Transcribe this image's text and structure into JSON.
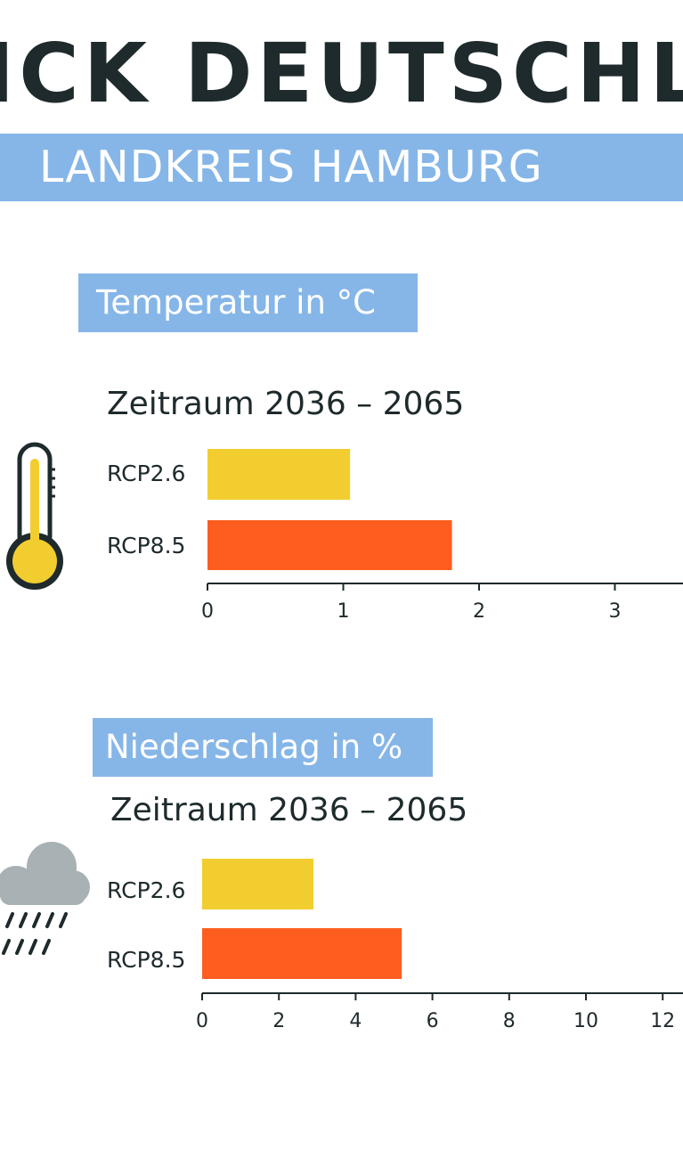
{
  "header": {
    "title": "ICK DEUTSCHLAN",
    "subtitle": "LANDKREIS HAMBURG"
  },
  "colors": {
    "accent_blue": "#86b6e8",
    "rcp26": "#f2cd2f",
    "rcp85": "#fd5d1f",
    "dark": "#1e2a2c",
    "cloud": "#a8b1b3"
  },
  "icons": [
    "thermometer-icon",
    "rain-cloud-icon"
  ],
  "chart_data": [
    {
      "type": "bar",
      "orientation": "horizontal",
      "title": "Temperatur in °C",
      "subtitle": "Zeitraum 2036 – 2065",
      "categories": [
        "RCP2.6",
        "RCP8.5"
      ],
      "values": [
        1.05,
        1.8
      ],
      "xticks": [
        "0",
        "1",
        "2",
        "3"
      ],
      "xlim": [
        0,
        3.5
      ],
      "colors": [
        "#f2cd2f",
        "#fd5d1f"
      ],
      "grid": false
    },
    {
      "type": "bar",
      "orientation": "horizontal",
      "title": "Niederschlag in %",
      "subtitle": "Zeitraum 2036 – 2065",
      "categories": [
        "RCP2.6",
        "RCP8.5"
      ],
      "values": [
        2.9,
        5.2
      ],
      "xticks": [
        "0",
        "2",
        "4",
        "6",
        "8",
        "10",
        "12"
      ],
      "xlim": [
        0,
        12.5
      ],
      "colors": [
        "#f2cd2f",
        "#fd5d1f"
      ],
      "grid": false
    }
  ]
}
